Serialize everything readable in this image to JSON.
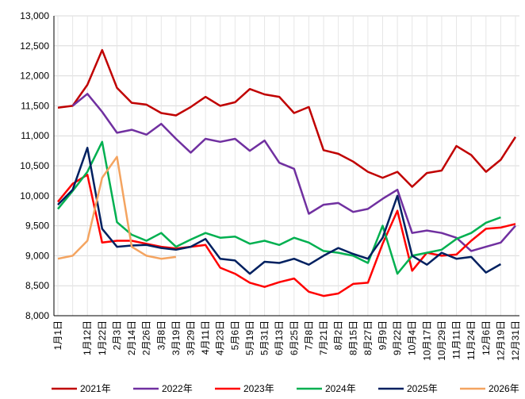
{
  "chart_data": {
    "type": "line",
    "categories": [
      "1月1日",
      null,
      "1月12日",
      "1月22日",
      "2月3日",
      "2月14日",
      "2月26日",
      "3月8日",
      "3月19日",
      "3月29日",
      "4月11日",
      "4月23日",
      "5月6日",
      "5月19日",
      "5月31日",
      "6月13日",
      "6月25日",
      "7月8日",
      "7月21日",
      "8月2日",
      "8月15日",
      "8月27日",
      "9月9日",
      "9月22日",
      "10月4日",
      "10月17日",
      "10月29日",
      "11月11日",
      "11月24日",
      "12月6日",
      "12月19日",
      "12月31日"
    ],
    "series": [
      {
        "name": "2021年",
        "color": "#c00000",
        "values": [
          11470,
          11500,
          11850,
          12430,
          11800,
          11550,
          11520,
          11380,
          11340,
          11480,
          11650,
          11500,
          11560,
          11780,
          11690,
          11650,
          11380,
          11480,
          10760,
          10700,
          10570,
          10400,
          10300,
          10400,
          10150,
          10380,
          10420,
          10830,
          10680,
          10400,
          10600,
          10980
        ]
      },
      {
        "name": "2022年",
        "color": "#7030a0",
        "values": [
          null,
          11500,
          11700,
          11400,
          11050,
          11100,
          11020,
          11200,
          10950,
          10720,
          10950,
          10900,
          10950,
          10750,
          10920,
          10550,
          10450,
          9700,
          9850,
          9880,
          9730,
          9780,
          9950,
          10100,
          9380,
          9420,
          9380,
          9300,
          9080,
          9150,
          9220,
          9500
        ]
      },
      {
        "name": "2023年",
        "color": "#ff0000",
        "values": [
          9900,
          10200,
          10350,
          9220,
          9250,
          9250,
          9200,
          9150,
          9120,
          9150,
          9180,
          8800,
          8700,
          8550,
          8480,
          8560,
          8620,
          8400,
          8330,
          8370,
          8530,
          8550,
          9200,
          9750,
          8750,
          9050,
          9000,
          9020,
          9250,
          9450,
          9470,
          9530
        ]
      },
      {
        "name": "2024年",
        "color": "#00b050",
        "values": [
          9780,
          10080,
          10400,
          10900,
          9560,
          9350,
          9250,
          9380,
          9150,
          9270,
          9380,
          9300,
          9320,
          9200,
          9250,
          9180,
          9300,
          9220,
          9080,
          9050,
          9000,
          8880,
          9500,
          8700,
          9000,
          9050,
          9100,
          9280,
          9380,
          9550,
          9640,
          null
        ]
      },
      {
        "name": "2025年",
        "color": "#002060",
        "values": [
          9850,
          10100,
          10800,
          9450,
          9150,
          9170,
          9180,
          9130,
          9100,
          9150,
          9280,
          8950,
          8920,
          8700,
          8900,
          8880,
          8950,
          8850,
          9000,
          9130,
          9030,
          8950,
          9300,
          10000,
          9000,
          8850,
          9050,
          8950,
          8980,
          8720,
          8860,
          null
        ]
      },
      {
        "name": "2026年",
        "color": "#f4a460",
        "values": [
          8950,
          9000,
          9250,
          10300,
          10650,
          9150,
          9000,
          8950,
          8980,
          null,
          null,
          null,
          null,
          null,
          null,
          null,
          null,
          null,
          null,
          null,
          null,
          null,
          null,
          null,
          null,
          null,
          null,
          null,
          null,
          null,
          null,
          null
        ]
      }
    ],
    "ylim": [
      8000,
      13000
    ],
    "yticks": [
      {
        "value": 8000,
        "label": "8,000"
      },
      {
        "value": 8500,
        "label": "8,500"
      },
      {
        "value": 9000,
        "label": "9,000"
      },
      {
        "value": 9500,
        "label": "9,500"
      },
      {
        "value": 10000,
        "label": "10,000"
      },
      {
        "value": 10500,
        "label": "10,500"
      },
      {
        "value": 11000,
        "label": "11,000"
      },
      {
        "value": 11500,
        "label": "11,500"
      },
      {
        "value": 12000,
        "label": "12,000"
      },
      {
        "value": 12500,
        "label": "12,500"
      },
      {
        "value": 13000,
        "label": "13,000"
      }
    ],
    "grid": true,
    "legend": "bottom"
  }
}
